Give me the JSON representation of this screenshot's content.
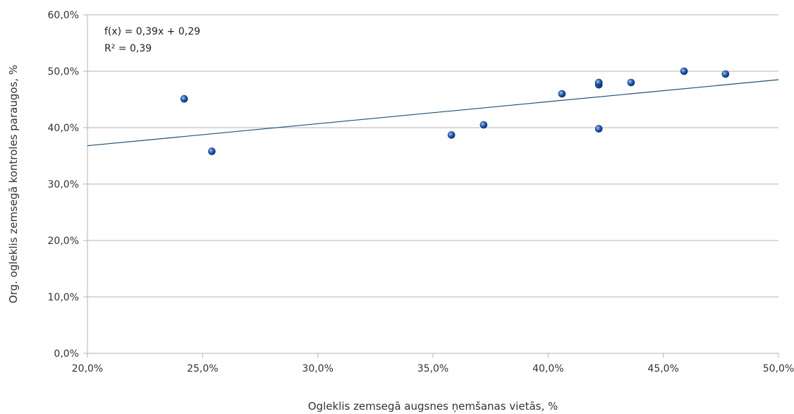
{
  "chart_data": {
    "type": "scatter",
    "xlabel": "Ogleklis zemsegā augsnes ņemšanas vietās, %",
    "ylabel": "Org. ogleklis zemsegā kontroles paraugos, %",
    "xlim": [
      0.2,
      0.5
    ],
    "ylim": [
      0.0,
      0.6
    ],
    "x_ticks": [
      0.2,
      0.25,
      0.3,
      0.35,
      0.4,
      0.45,
      0.5
    ],
    "y_ticks": [
      0.0,
      0.1,
      0.2,
      0.3,
      0.4,
      0.5,
      0.6
    ],
    "x_tick_labels": [
      "20,0%",
      "25,0%",
      "30,0%",
      "35,0%",
      "40,0%",
      "45,0%",
      "50,0%"
    ],
    "y_tick_labels": [
      "0,0%",
      "10,0%",
      "20,0%",
      "30,0%",
      "40,0%",
      "50,0%",
      "60,0%"
    ],
    "grid": "horizontal",
    "points": [
      {
        "x": 0.242,
        "y": 0.451
      },
      {
        "x": 0.254,
        "y": 0.358
      },
      {
        "x": 0.358,
        "y": 0.387
      },
      {
        "x": 0.372,
        "y": 0.405
      },
      {
        "x": 0.406,
        "y": 0.46
      },
      {
        "x": 0.422,
        "y": 0.476
      },
      {
        "x": 0.422,
        "y": 0.48
      },
      {
        "x": 0.422,
        "y": 0.398
      },
      {
        "x": 0.436,
        "y": 0.48
      },
      {
        "x": 0.459,
        "y": 0.5
      },
      {
        "x": 0.477,
        "y": 0.495
      }
    ],
    "trendline": {
      "slope": 0.39,
      "intercept": 0.29
    },
    "annotations": [
      "f(x) = 0,39x + 0,29",
      "R² = 0,39"
    ],
    "colors": {
      "point": "#2a5fb8",
      "trendline": "#1f4e79",
      "grid": "#b3b3b3",
      "axis": "#b3b3b3"
    }
  }
}
